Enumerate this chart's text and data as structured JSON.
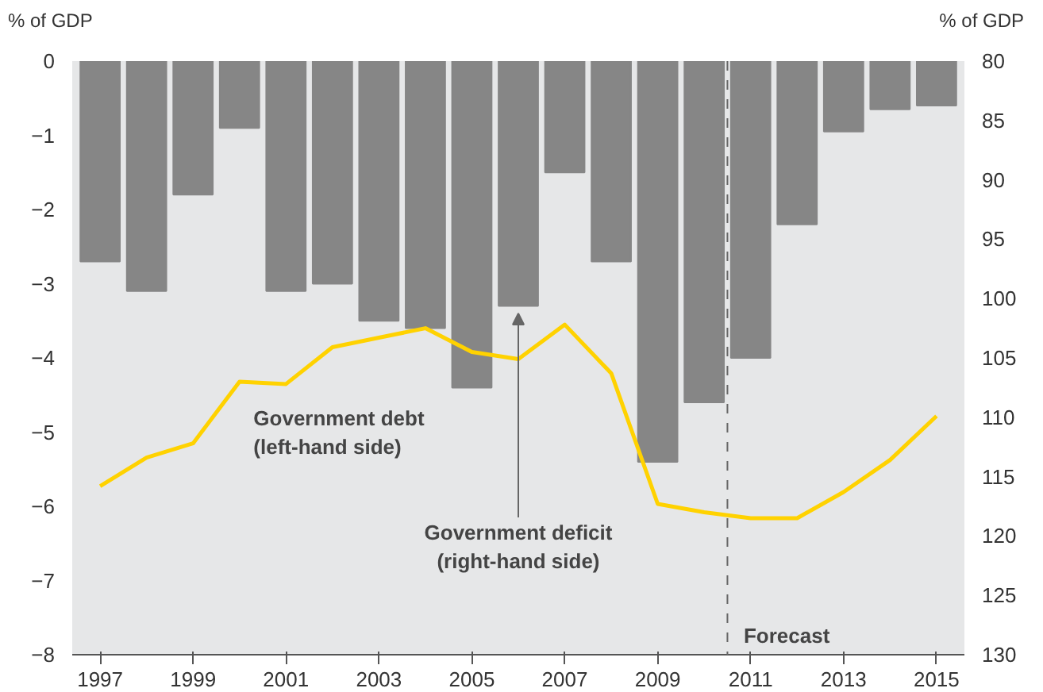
{
  "chart_data": {
    "type": "bar",
    "ylabel": "% of GDP",
    "y2label": "% of GDP",
    "x": [
      1997,
      1998,
      1999,
      2000,
      2001,
      2002,
      2003,
      2004,
      2005,
      2006,
      2007,
      2008,
      2009,
      2010,
      2011,
      2012,
      2013,
      2014,
      2015
    ],
    "series": [
      {
        "color": "#868686",
        "values": [
          -2.7,
          -3.1,
          -1.8,
          -0.9,
          -3.1,
          -3.0,
          -3.5,
          -3.6,
          -4.4,
          -3.3,
          -1.5,
          -2.7,
          -5.4,
          -4.6,
          -4.0,
          -2.2,
          -0.95,
          -0.65,
          -0.6
        ]
      },
      {
        "type": "line",
        "axis": "y2",
        "color": "#ffd200",
        "values": [
          115.8,
          113.4,
          112.2,
          107.0,
          107.2,
          104.1,
          103.3,
          102.5,
          104.5,
          105.1,
          102.2,
          106.3,
          117.3,
          118.0,
          118.5,
          118.5,
          116.3,
          113.6,
          109.9
        ]
      }
    ],
    "xlim": [
      1996.4,
      2015.6
    ],
    "xticks": [
      1997,
      1999,
      2001,
      2003,
      2005,
      2007,
      2009,
      2011,
      2013,
      2015
    ],
    "ylim": [
      -8,
      0
    ],
    "yticks": [
      -8,
      -7,
      -6,
      -5,
      -4,
      -3,
      -2,
      -1,
      0
    ],
    "y2lim": [
      130,
      80
    ],
    "y2ticks": [
      130,
      125,
      120,
      115,
      110,
      105,
      100,
      95,
      90,
      85,
      80
    ],
    "ref_lines": [
      {
        "axis": "x",
        "value": 2010.5,
        "label": "Forecast",
        "color": "#666666",
        "line_style": "dashed"
      }
    ],
    "annotations": [
      "Government debt\n(left-hand side)",
      "Government deficit\n(right-hand side)"
    ]
  }
}
